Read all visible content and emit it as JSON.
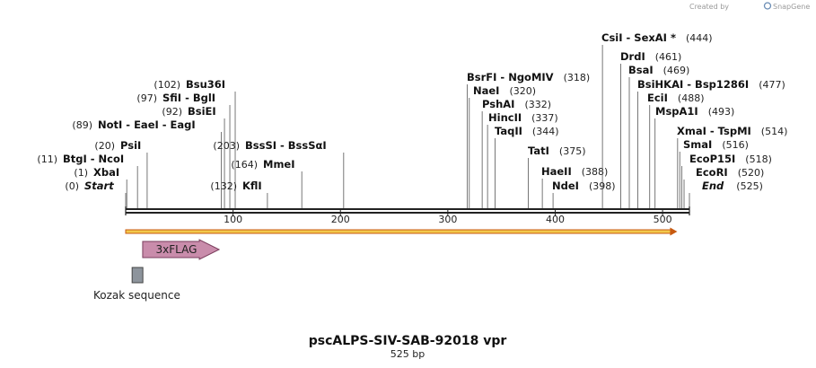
{
  "credit": {
    "prefix": "Created by",
    "brand": "SnapGene",
    "logo_color": "#6b8db5"
  },
  "map": {
    "title": "pscALPS-SIV-SAB-92018 vpr",
    "subtitle": "525 bp",
    "length_bp": 525,
    "tick_labels": [
      "100",
      "200",
      "300",
      "400",
      "500"
    ],
    "tick_values": [
      100,
      200,
      300,
      400,
      500
    ],
    "colors": {
      "backbone": "#222222",
      "orf_fill": "#f2c84b",
      "orf_edge": "#c85a10",
      "flag_fill": "#c98cab",
      "flag_edge": "#7a3d5c",
      "kozak_fill": "#8d949c",
      "kozak_edge": "#444444",
      "stem": "#555555"
    }
  },
  "sites": [
    {
      "pos_text": "(0)",
      "name": "Start",
      "italic": true,
      "bp": 0
    },
    {
      "pos_text": "(1)",
      "name": "XbaI",
      "bp": 1
    },
    {
      "pos_text": "(11)",
      "name": "BtgI  -  NcoI",
      "bp": 11
    },
    {
      "pos_text": "(20)",
      "name": "PsiI",
      "bp": 20
    },
    {
      "pos_text": "(89)",
      "name": "NotI  -  EaeI  -  EagI",
      "bp": 89
    },
    {
      "pos_text": "(92)",
      "name": "BsiEI",
      "bp": 92
    },
    {
      "pos_text": "(97)",
      "name": "SfiI  -  BglI",
      "bp": 97
    },
    {
      "pos_text": "(102)",
      "name": "Bsu36I",
      "bp": 102
    },
    {
      "pos_text": "(132)",
      "name": "KflI",
      "bp": 132
    },
    {
      "pos_text": "(164)",
      "name": "MmeI",
      "bp": 164
    },
    {
      "pos_text": "(203)",
      "name": "BssSI  -  BssSαI",
      "bp": 203
    },
    {
      "pos_text": "(318)",
      "name": "BsrFI  -  NgoMIV",
      "bp": 318
    },
    {
      "pos_text": "(320)",
      "name": "NaeI",
      "bp": 320
    },
    {
      "pos_text": "(332)",
      "name": "PshAI",
      "bp": 332
    },
    {
      "pos_text": "(337)",
      "name": "HincII",
      "bp": 337
    },
    {
      "pos_text": "(344)",
      "name": "TaqII",
      "bp": 344
    },
    {
      "pos_text": "(375)",
      "name": "TatI",
      "bp": 375
    },
    {
      "pos_text": "(388)",
      "name": "HaeII",
      "bp": 388
    },
    {
      "pos_text": "(398)",
      "name": "NdeI",
      "bp": 398
    },
    {
      "pos_text": "(444)",
      "name": "CsiI  -  SexAI *",
      "bp": 444
    },
    {
      "pos_text": "(461)",
      "name": "DrdI",
      "bp": 461
    },
    {
      "pos_text": "(469)",
      "name": "BsaI",
      "bp": 469
    },
    {
      "pos_text": "(477)",
      "name": "BsiHKAI  -  Bsp1286I",
      "bp": 477
    },
    {
      "pos_text": "(488)",
      "name": "EciI",
      "bp": 488
    },
    {
      "pos_text": "(493)",
      "name": "MspA1I",
      "bp": 493
    },
    {
      "pos_text": "(514)",
      "name": "XmaI  -  TspMI",
      "bp": 514
    },
    {
      "pos_text": "(516)",
      "name": "SmaI",
      "bp": 516
    },
    {
      "pos_text": "(518)",
      "name": "EcoP15I",
      "bp": 518
    },
    {
      "pos_text": "(520)",
      "name": "EcoRI",
      "bp": 520
    },
    {
      "pos_text": "(525)",
      "name": "End",
      "italic": true,
      "bp": 525
    }
  ],
  "features": {
    "orf": {
      "start_bp": 0,
      "end_bp": 512
    },
    "flag": {
      "label": "3xFLAG",
      "start_bp": 15,
      "end_bp": 87
    },
    "kozak": {
      "label": "Kozak sequence",
      "start_bp": 6,
      "end_bp": 16
    }
  }
}
